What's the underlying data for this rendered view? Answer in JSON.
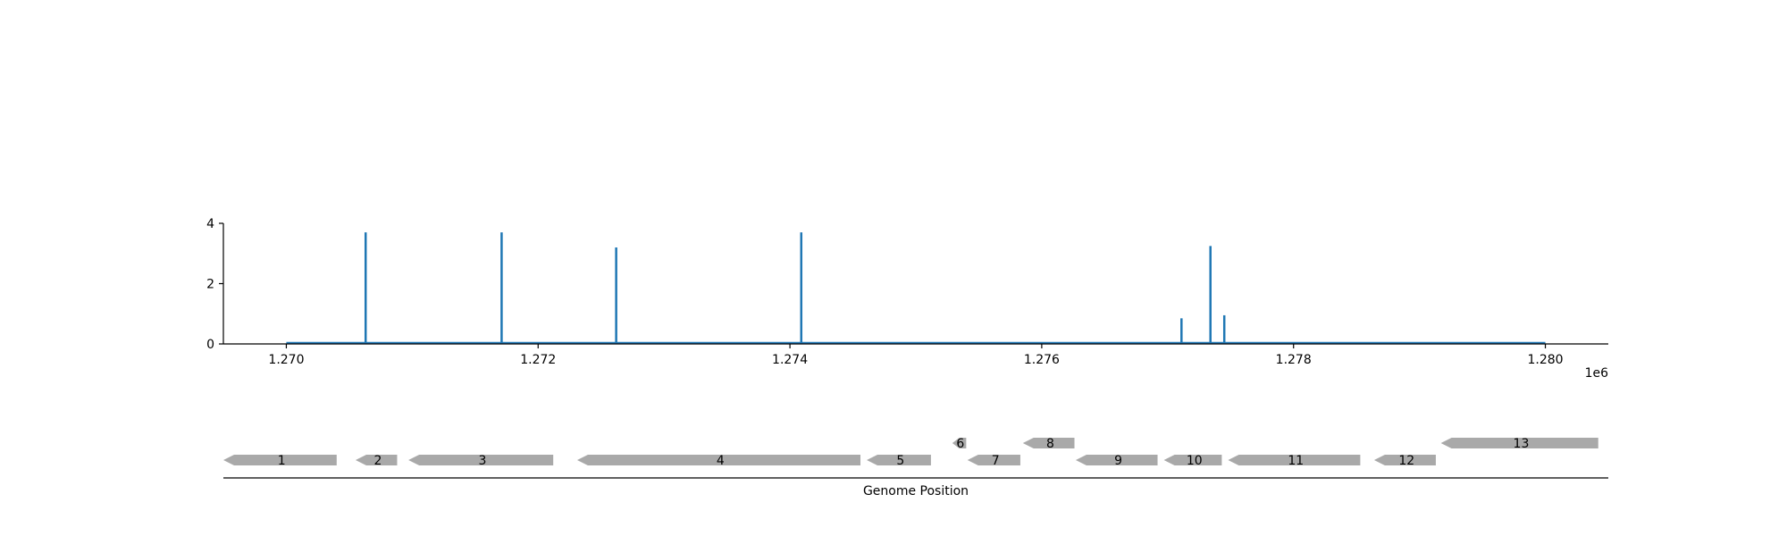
{
  "chart_data": [
    {
      "type": "bar",
      "title": "",
      "xlabel": "",
      "ylabel": "",
      "x_offset_label": "1e6",
      "xlim": [
        1269500,
        1280500
      ],
      "ylim": [
        0,
        4
      ],
      "x_ticks": [
        {
          "value": 1270000,
          "label": "1.270"
        },
        {
          "value": 1272000,
          "label": "1.272"
        },
        {
          "value": 1274000,
          "label": "1.274"
        },
        {
          "value": 1276000,
          "label": "1.276"
        },
        {
          "value": 1278000,
          "label": "1.278"
        },
        {
          "value": 1280000,
          "label": "1.280"
        }
      ],
      "y_ticks": [
        {
          "value": 0,
          "label": "0"
        },
        {
          "value": 2,
          "label": "2"
        },
        {
          "value": 4,
          "label": "4"
        }
      ],
      "baseline": {
        "from": 1270000,
        "to": 1280000,
        "value": 0
      },
      "peaks": [
        {
          "x": 1270630,
          "y": 3.7
        },
        {
          "x": 1271710,
          "y": 3.7
        },
        {
          "x": 1272620,
          "y": 3.2
        },
        {
          "x": 1274090,
          "y": 3.7
        },
        {
          "x": 1277110,
          "y": 0.85
        },
        {
          "x": 1277340,
          "y": 3.25
        },
        {
          "x": 1277450,
          "y": 0.95
        }
      ],
      "grid": false,
      "color": "#1f77b4"
    },
    {
      "type": "gene-track",
      "xlabel": "Genome Position",
      "xlim": [
        1269500,
        1280500
      ],
      "genes": [
        {
          "label": "1",
          "start": 1269500,
          "end": 1270400,
          "strand": "-",
          "row": 0
        },
        {
          "label": "2",
          "start": 1270550,
          "end": 1270880,
          "strand": "-",
          "row": 0
        },
        {
          "label": "3",
          "start": 1270970,
          "end": 1272120,
          "strand": "-",
          "row": 0
        },
        {
          "label": "4",
          "start": 1272310,
          "end": 1274560,
          "strand": "-",
          "row": 0
        },
        {
          "label": "5",
          "start": 1274610,
          "end": 1275120,
          "strand": "-",
          "row": 0
        },
        {
          "label": "6",
          "start": 1275290,
          "end": 1275400,
          "strand": "-",
          "row": 1
        },
        {
          "label": "7",
          "start": 1275410,
          "end": 1275830,
          "strand": "-",
          "row": 0
        },
        {
          "label": "8",
          "start": 1275850,
          "end": 1276260,
          "strand": "-",
          "row": 1
        },
        {
          "label": "9",
          "start": 1276270,
          "end": 1276920,
          "strand": "-",
          "row": 0
        },
        {
          "label": "10",
          "start": 1276970,
          "end": 1277430,
          "strand": "-",
          "row": 0
        },
        {
          "label": "11",
          "start": 1277480,
          "end": 1278530,
          "strand": "-",
          "row": 0
        },
        {
          "label": "12",
          "start": 1278640,
          "end": 1279130,
          "strand": "-",
          "row": 0
        },
        {
          "label": "13",
          "start": 1279170,
          "end": 1280420,
          "strand": "-",
          "row": 1
        }
      ],
      "gene_color": "#a9a9a9"
    }
  ]
}
